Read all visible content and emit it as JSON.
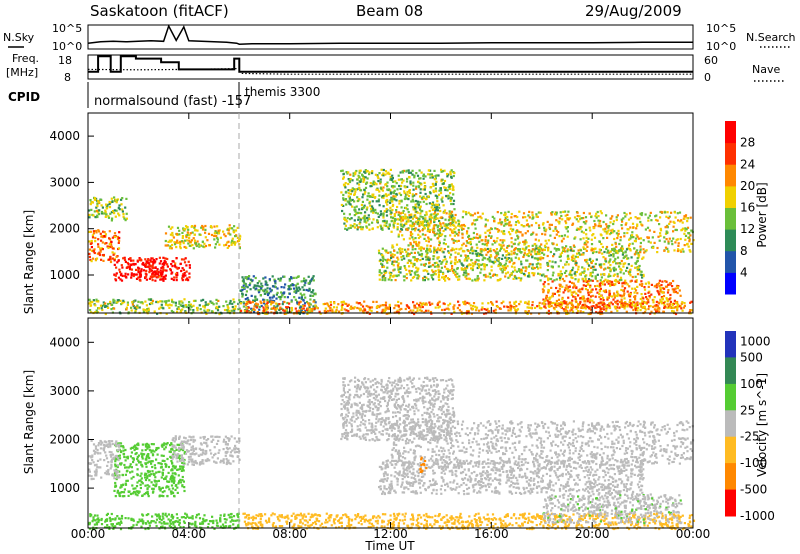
{
  "header": {
    "station": "Saskatoon (fitACF)",
    "beam": "Beam 08",
    "date": "29/Aug/2009"
  },
  "sky_panel": {
    "left_label": "N.Sky",
    "right_label": "N.Search",
    "left_ticks": [
      "10^5",
      "10^0"
    ],
    "right_ticks": [
      "10^5",
      "10^0"
    ]
  },
  "freq_panel": {
    "left_label_1": "Freq.",
    "left_label_2": "[MHz]",
    "right_label": "Nave",
    "left_ticks": [
      "18",
      "8"
    ],
    "right_ticks": [
      "60",
      "0"
    ]
  },
  "cpid": {
    "label": "CPID",
    "programs": [
      {
        "name": "normalsound (fast) -157",
        "start_hour": 0
      },
      {
        "name": "themis 3300",
        "start_hour": 6
      }
    ]
  },
  "x_axis": {
    "label": "Time UT",
    "ticks": [
      "00:00",
      "04:00",
      "08:00",
      "12:00",
      "16:00",
      "20:00",
      "00:00"
    ]
  },
  "power_panel": {
    "ylabel": "Slant Range [km]",
    "yticks": [
      "1000",
      "2000",
      "3000",
      "4000"
    ],
    "colorbar_label": "Power [dB]",
    "colorbar_ticks": [
      "4",
      "8",
      "12",
      "16",
      "20",
      "24",
      "28"
    ]
  },
  "velocity_panel": {
    "ylabel": "Slant Range [km]",
    "yticks": [
      "1000",
      "2000",
      "3000",
      "4000"
    ],
    "colorbar_label": "Velocity [m s^-1]",
    "colorbar_ticks": [
      "1000",
      "500",
      "100",
      "25",
      "-25",
      "-100",
      "-500",
      "-1000"
    ]
  },
  "colors": {
    "power_scale": [
      "#0000ff",
      "#2255aa",
      "#2e8b57",
      "#6abf3a",
      "#f0d000",
      "#ff8800",
      "#ff3000",
      "#ff0000"
    ],
    "velocity_scale": [
      "#2233bb",
      "#338855",
      "#55cc33",
      "#bbbbbb",
      "#ffbb22",
      "#ff8800",
      "#ff0000"
    ]
  },
  "chart_data": [
    {
      "type": "line",
      "title": "N.Sky / N.Search",
      "x_unit": "hours UT",
      "xlim": [
        0,
        24
      ],
      "series": [
        {
          "name": "N.Sky",
          "x": [
            0,
            0.5,
            1,
            1.5,
            2,
            2.5,
            3,
            3.2,
            3.5,
            3.8,
            4,
            4.5,
            5,
            5.5,
            5.9,
            6,
            6.5,
            8,
            10,
            12,
            14,
            16,
            18,
            20,
            22,
            24
          ],
          "y": [
            1.2,
            1.5,
            1.6,
            1.5,
            1.6,
            1.7,
            1.6,
            4.8,
            1.8,
            4.6,
            1.7,
            1.6,
            1.5,
            1.4,
            1.2,
            1.0,
            1.1,
            1.1,
            1.2,
            1.2,
            1.2,
            1.3,
            1.3,
            1.3,
            1.4,
            1.4
          ]
        }
      ],
      "y_scale": "log10",
      "ylim": [
        0,
        5
      ]
    },
    {
      "type": "line",
      "title": "Freq / Nave",
      "x_unit": "hours UT",
      "xlim": [
        0,
        24
      ],
      "series": [
        {
          "name": "Freq.",
          "x": [
            0,
            0.4,
            0.4,
            0.9,
            0.9,
            1.3,
            1.3,
            1.9,
            1.9,
            2.9,
            2.9,
            3.4,
            3.4,
            3.6,
            3.6,
            5.8,
            5.8,
            6.0,
            6.0,
            24
          ],
          "y": [
            11,
            11,
            17.5,
            17.5,
            11,
            11,
            17.5,
            17.5,
            16.5,
            16.5,
            15,
            15,
            15,
            15,
            12,
            12,
            16.5,
            16.5,
            11,
            11
          ]
        },
        {
          "name": "Nave",
          "x": [
            0,
            2,
            4,
            6,
            6.05,
            8,
            12,
            16,
            20,
            24
          ],
          "y": [
            24,
            23,
            24,
            26,
            14,
            12,
            12,
            12,
            12,
            12
          ]
        }
      ],
      "ylim_freq": [
        8,
        18
      ],
      "ylim_nave": [
        0,
        60
      ]
    },
    {
      "type": "heatmap",
      "title": "Power [dB]",
      "xlabel": "Time UT",
      "ylabel": "Slant Range [km]",
      "xlim": [
        0,
        24
      ],
      "ylim": [
        180,
        4500
      ],
      "zlim": [
        0,
        30
      ],
      "regions": [
        {
          "t0": 0.0,
          "t1": 6.0,
          "r0": 180,
          "r1": 500,
          "z": 14
        },
        {
          "t0": 0.0,
          "t1": 1.2,
          "r0": 1300,
          "r1": 2000,
          "z": 22
        },
        {
          "t0": 1.0,
          "t1": 3.0,
          "r0": 900,
          "r1": 1400,
          "z": 28
        },
        {
          "t0": 2.0,
          "t1": 4.0,
          "r0": 900,
          "r1": 1400,
          "z": 27
        },
        {
          "t0": 0.0,
          "t1": 1.5,
          "r0": 2200,
          "r1": 2700,
          "z": 14
        },
        {
          "t0": 3.0,
          "t1": 6.0,
          "r0": 1600,
          "r1": 2100,
          "z": 17
        },
        {
          "t0": 6.0,
          "t1": 9.0,
          "r0": 180,
          "r1": 1000,
          "z": 10
        },
        {
          "t0": 6.0,
          "t1": 24,
          "r0": 180,
          "r1": 450,
          "z": 20
        },
        {
          "t0": 10.0,
          "t1": 14.5,
          "r0": 2000,
          "r1": 3300,
          "z": 14
        },
        {
          "t0": 12.0,
          "t1": 24,
          "r0": 1500,
          "r1": 2400,
          "z": 17
        },
        {
          "t0": 11.5,
          "t1": 22.0,
          "r0": 900,
          "r1": 1600,
          "z": 15
        },
        {
          "t0": 18.0,
          "t1": 23.5,
          "r0": 300,
          "r1": 900,
          "z": 21
        }
      ],
      "marker_hour": 6.0
    },
    {
      "type": "heatmap",
      "title": "Velocity [m s^-1]",
      "xlabel": "Time UT",
      "ylabel": "Slant Range [km]",
      "xlim": [
        0,
        24
      ],
      "ylim": [
        180,
        4500
      ],
      "zlim": [
        -1000,
        1000
      ],
      "regions": [
        {
          "t0": 0.0,
          "t1": 6.0,
          "r0": 180,
          "r1": 500,
          "z": 60
        },
        {
          "t0": 1.0,
          "t1": 3.8,
          "r0": 850,
          "r1": 1950,
          "z": 80
        },
        {
          "t0": 0.0,
          "t1": 1.2,
          "r0": 1200,
          "r1": 2000,
          "z": 0
        },
        {
          "t0": 3.3,
          "t1": 6.0,
          "r0": 1500,
          "r1": 2100,
          "z": 0
        },
        {
          "t0": 6.0,
          "t1": 24,
          "r0": 180,
          "r1": 500,
          "z": -60
        },
        {
          "t0": 10.0,
          "t1": 14.5,
          "r0": 2000,
          "r1": 3300,
          "z": 0
        },
        {
          "t0": 12.0,
          "t1": 24,
          "r0": 1500,
          "r1": 2400,
          "z": 0
        },
        {
          "t0": 11.5,
          "t1": 22.0,
          "r0": 900,
          "r1": 1600,
          "z": 0
        },
        {
          "t0": 18.0,
          "t1": 23.5,
          "r0": 300,
          "r1": 900,
          "z": 10
        },
        {
          "t0": 13.1,
          "t1": 13.4,
          "r0": 1350,
          "r1": 1700,
          "z": -120
        }
      ],
      "marker_hour": 6.0
    }
  ]
}
